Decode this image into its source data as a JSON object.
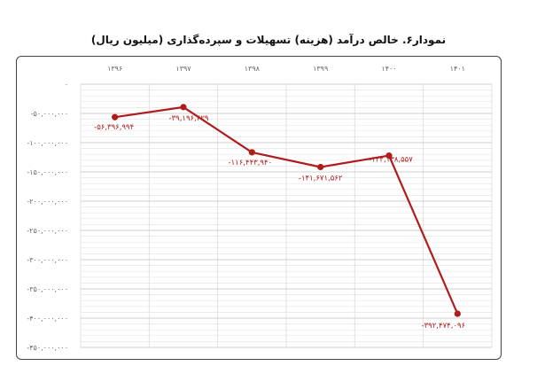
{
  "title": "نمودار۶. خالص درآمد (هزینه) تسهیلات و سپرده‌گذاری (میلیون ریال)",
  "chart_data": {
    "type": "line",
    "title": "نمودار۶. خالص درآمد (هزینه) تسهیلات و سپرده‌گذاری (میلیون ریال)",
    "categories": [
      "۱۳۹۶",
      "۱۳۹۷",
      "۱۳۹۸",
      "۱۳۹۹",
      "۱۴۰۰",
      "۱۴۰۱"
    ],
    "series": [
      {
        "values": [
          -56396994,
          -39196429,
          -116443940,
          -141671562,
          -122138557,
          -392474096
        ],
        "labels": [
          "-۵۶,۳۹۶,۹۹۴",
          "-۳۹,۱۹۶,۴۲۹",
          "-۱۱۶,۴۴۳,۹۴۰",
          "-۱۴۱,۶۷۱,۵۶۲",
          "-۱۲۲,۱۳۸,۵۵۷",
          "-۳۹۲,۴۷۴,۰۹۶"
        ]
      }
    ],
    "y_ticks": [
      {
        "value": 0,
        "label": "۰"
      },
      {
        "value": -50000000,
        "label": "-۵۰,۰۰۰,۰۰۰"
      },
      {
        "value": -100000000,
        "label": "-۱۰۰,۰۰۰,۰۰۰"
      },
      {
        "value": -150000000,
        "label": "-۱۵۰,۰۰۰,۰۰۰"
      },
      {
        "value": -200000000,
        "label": "-۲۰۰,۰۰۰,۰۰۰"
      },
      {
        "value": -250000000,
        "label": "-۲۵۰,۰۰۰,۰۰۰"
      },
      {
        "value": -300000000,
        "label": "-۳۰۰,۰۰۰,۰۰۰"
      },
      {
        "value": -350000000,
        "label": "-۳۵۰,۰۰۰,۰۰۰"
      },
      {
        "value": -400000000,
        "label": "-۴۰۰,۰۰۰,۰۰۰"
      },
      {
        "value": -450000000,
        "label": "-۴۵۰,۰۰۰,۰۰۰"
      }
    ],
    "ylim": [
      -450000000,
      0
    ],
    "y_inverted": true,
    "x_axis_position": "top",
    "grid": true,
    "line_color": "#b01c1c"
  }
}
